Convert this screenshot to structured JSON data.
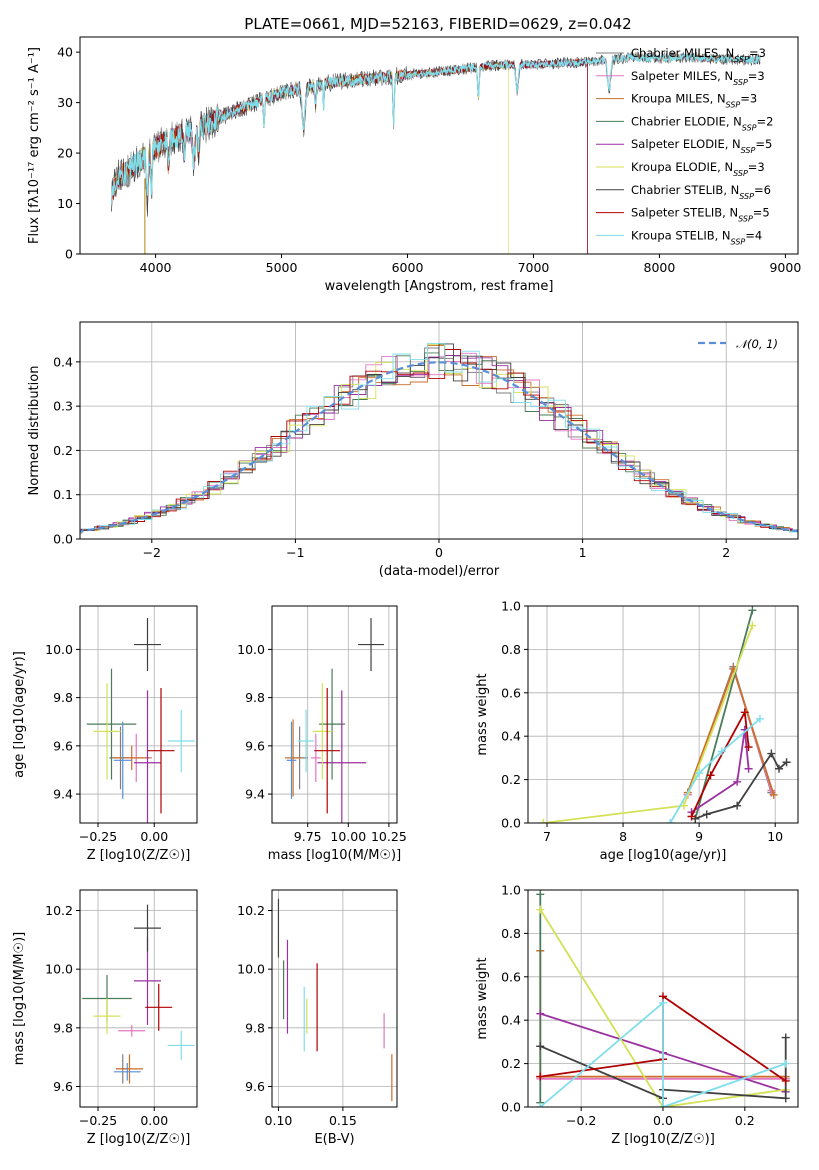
{
  "title": "PLATE=0661, MJD=52163, FIBERID=0629, z=0.042",
  "colors": {
    "chabrier_miles": "#7f7f7f",
    "salpeter_miles": "#e377c2",
    "kroupa_miles": "#b8860b",
    "chabrier_elodie": "#4a7c59",
    "salpeter_elodie": "#9b30a0",
    "kroupa_elodie": "#d4e157",
    "chabrier_stelib": "#404040",
    "salpeter_stelib": "#b00000",
    "kroupa_stelib": "#80deea",
    "miles_orange": "#cc6f2a",
    "blue_dash": "#5a8ed8"
  },
  "chart_data": [
    {
      "type": "line",
      "id": "spectrum",
      "title": "PLATE=0661, MJD=52163, FIBERID=0629, z=0.042",
      "xlabel": "wavelength [Angstrom, rest frame]",
      "ylabel": "Flux [fλ10⁻¹⁷ erg cm⁻² s⁻¹ A⁻¹]",
      "xlim": [
        3400,
        9100
      ],
      "ylim": [
        0,
        43
      ],
      "xticks": [
        4000,
        5000,
        6000,
        7000,
        8000,
        9000
      ],
      "yticks": [
        0,
        10,
        20,
        30,
        40
      ],
      "grid": false,
      "legend_position": "top-right",
      "continuum_x": [
        3650,
        3700,
        3800,
        3900,
        4000,
        4100,
        4200,
        4300,
        4400,
        4500,
        4600,
        4800,
        5000,
        5200,
        5400,
        5600,
        5800,
        6000,
        6200,
        6400,
        6600,
        6800,
        7000,
        7200,
        7400,
        7600,
        7800,
        8000,
        8200,
        8400,
        8600,
        8800
      ],
      "continuum_y": [
        12,
        15,
        17,
        19,
        21,
        22.5,
        23.5,
        24.5,
        25.5,
        27,
        28,
        30,
        32,
        33,
        34,
        34.5,
        35,
        35.5,
        36,
        36.5,
        37.2,
        37.5,
        37.5,
        37.8,
        38,
        38.5,
        39,
        38.8,
        39,
        38.7,
        38.5,
        38.5
      ],
      "legend": [
        "Chabrier MILES, N_SSP=3",
        "Salpeter MILES, N_SSP=3",
        "Kroupa MILES, N_SSP=3",
        "Chabrier ELODIE, N_SSP=2",
        "Salpeter ELODIE, N_SSP=5",
        "Kroupa ELODIE, N_SSP=3",
        "Chabrier STELIB, N_SSP=6",
        "Salpeter STELIB, N_SSP=5",
        "Kroupa STELIB, N_SSP=4"
      ]
    },
    {
      "type": "bar",
      "id": "residuals",
      "xlabel": "(data-model)/error",
      "ylabel": "Normed distribution",
      "xlim": [
        -2.5,
        2.5
      ],
      "ylim": [
        0,
        0.49
      ],
      "xticks": [
        -2,
        -1,
        0,
        1,
        2
      ],
      "yticks": [
        0.0,
        0.1,
        0.2,
        0.3,
        0.4
      ],
      "grid": true,
      "legend_position": "top-right",
      "legend": [
        "𝒩(0, 1)"
      ],
      "gaussian": {
        "mean": 0,
        "sigma": 1
      }
    },
    {
      "type": "scatter",
      "id": "age-vs-z",
      "xlabel": "Z [log10(Z/Z☉)]",
      "ylabel": "age  [log10(age/yr)]",
      "xlim": [
        -0.33,
        0.19
      ],
      "ylim": [
        9.28,
        10.18
      ],
      "xticks": [
        -0.25,
        0.0
      ],
      "yticks": [
        9.4,
        9.6,
        9.8,
        10.0
      ],
      "grid": true,
      "points": [
        {
          "x": -0.15,
          "y": 9.55,
          "xe": 0.05,
          "ye": 0.13,
          "c": "#7f7f7f"
        },
        {
          "x": -0.08,
          "y": 9.55,
          "xe": 0.07,
          "ye": 0.1,
          "c": "#e377c2"
        },
        {
          "x": -0.1,
          "y": 9.55,
          "xe": 0.08,
          "ye": 0.05,
          "c": "#cc6f2a"
        },
        {
          "x": -0.19,
          "y": 9.69,
          "xe": 0.11,
          "ye": 0.23,
          "c": "#4a7c59"
        },
        {
          "x": -0.03,
          "y": 9.53,
          "xe": 0.06,
          "ye": 0.3,
          "c": "#9b30a0"
        },
        {
          "x": -0.21,
          "y": 9.66,
          "xe": 0.06,
          "ye": 0.2,
          "c": "#d4e157"
        },
        {
          "x": -0.03,
          "y": 10.02,
          "xe": 0.06,
          "ye": 0.11,
          "c": "#404040"
        },
        {
          "x": 0.03,
          "y": 9.58,
          "xe": 0.06,
          "ye": 0.26,
          "c": "#b00000"
        },
        {
          "x": 0.12,
          "y": 9.62,
          "xe": 0.06,
          "ye": 0.13,
          "c": "#80deea"
        },
        {
          "x": -0.14,
          "y": 9.54,
          "xe": 0.04,
          "ye": 0.16,
          "c": "#5a8ed8"
        }
      ]
    },
    {
      "type": "scatter",
      "id": "age-vs-mass",
      "xlabel": "mass [log10(M/M☉)]",
      "ylabel": "",
      "xlim": [
        9.53,
        10.3
      ],
      "ylim": [
        9.28,
        10.18
      ],
      "xticks": [
        9.75,
        10.0,
        10.25
      ],
      "yticks": [
        9.4,
        9.6,
        9.8,
        10.0
      ],
      "grid": true,
      "points": [
        {
          "x": 9.7,
          "y": 9.55,
          "xe": 0.05,
          "ye": 0.13,
          "c": "#7f7f7f"
        },
        {
          "x": 9.8,
          "y": 9.55,
          "xe": 0.03,
          "ye": 0.1,
          "c": "#e377c2"
        },
        {
          "x": 9.66,
          "y": 9.55,
          "xe": 0.05,
          "ye": 0.16,
          "c": "#cc6f2a"
        },
        {
          "x": 9.9,
          "y": 9.69,
          "xe": 0.08,
          "ye": 0.23,
          "c": "#4a7c59"
        },
        {
          "x": 9.96,
          "y": 9.53,
          "xe": 0.15,
          "ye": 0.3,
          "c": "#9b30a0"
        },
        {
          "x": 9.84,
          "y": 9.66,
          "xe": 0.06,
          "ye": 0.2,
          "c": "#d4e157"
        },
        {
          "x": 10.14,
          "y": 10.02,
          "xe": 0.08,
          "ye": 0.11,
          "c": "#404040"
        },
        {
          "x": 9.87,
          "y": 9.58,
          "xe": 0.08,
          "ye": 0.26,
          "c": "#b00000"
        },
        {
          "x": 9.74,
          "y": 9.62,
          "xe": 0.05,
          "ye": 0.13,
          "c": "#80deea"
        },
        {
          "x": 9.65,
          "y": 9.54,
          "xe": 0.03,
          "ye": 0.16,
          "c": "#5a8ed8"
        }
      ]
    },
    {
      "type": "line",
      "id": "weight-vs-age",
      "xlabel": "age  [log10(age/yr)]",
      "ylabel": "mass weight",
      "xlim": [
        6.75,
        10.3
      ],
      "ylim": [
        0,
        1.0
      ],
      "xticks": [
        7,
        8,
        9,
        10
      ],
      "yticks": [
        0.0,
        0.2,
        0.4,
        0.6,
        0.8,
        1.0
      ],
      "grid": true,
      "series": [
        {
          "c": "#7f7f7f",
          "x": [
            8.85,
            9.45,
            9.95
          ],
          "y": [
            0.13,
            0.72,
            0.14
          ]
        },
        {
          "c": "#e377c2",
          "x": [
            8.85,
            9.45,
            9.95
          ],
          "y": [
            0.13,
            0.71,
            0.15
          ]
        },
        {
          "c": "#cc6f2a",
          "x": [
            8.85,
            9.45,
            9.98
          ],
          "y": [
            0.14,
            0.71,
            0.13
          ]
        },
        {
          "c": "#4a7c59",
          "x": [
            8.95,
            9.7
          ],
          "y": [
            0.02,
            0.98
          ]
        },
        {
          "c": "#9b30a0",
          "x": [
            8.9,
            9.5,
            9.6,
            9.65
          ],
          "y": [
            0.05,
            0.19,
            0.43,
            0.25
          ]
        },
        {
          "c": "#d4e157",
          "x": [
            6.95,
            8.8,
            9.7
          ],
          "y": [
            0.0,
            0.08,
            0.91
          ]
        },
        {
          "c": "#404040",
          "x": [
            8.95,
            9.1,
            9.5,
            9.95,
            10.05,
            10.15
          ],
          "y": [
            0.02,
            0.04,
            0.08,
            0.32,
            0.25,
            0.28
          ]
        },
        {
          "c": "#b00000",
          "x": [
            8.9,
            9.15,
            9.6,
            9.65
          ],
          "y": [
            0.03,
            0.22,
            0.51,
            0.35
          ]
        },
        {
          "c": "#80deea",
          "x": [
            8.62,
            9.0,
            9.3,
            9.8
          ],
          "y": [
            0.0,
            0.23,
            0.33,
            0.48
          ]
        }
      ]
    },
    {
      "type": "scatter",
      "id": "mass-vs-z",
      "xlabel": "Z [log10(Z/Z☉)]",
      "ylabel": "mass [log10(M/M☉)]",
      "xlim": [
        -0.33,
        0.19
      ],
      "ylim": [
        9.53,
        10.27
      ],
      "xticks": [
        -0.25,
        0.0
      ],
      "yticks": [
        9.6,
        9.8,
        10.0,
        10.2
      ],
      "grid": true,
      "points": [
        {
          "x": -0.14,
          "y": 9.66,
          "xe": 0.03,
          "ye": 0.05,
          "c": "#7f7f7f"
        },
        {
          "x": -0.1,
          "y": 9.79,
          "xe": 0.06,
          "ye": 0.02,
          "c": "#e377c2"
        },
        {
          "x": -0.11,
          "y": 9.66,
          "xe": 0.06,
          "ye": 0.05,
          "c": "#cc6f2a"
        },
        {
          "x": -0.21,
          "y": 9.9,
          "xe": 0.11,
          "ye": 0.08,
          "c": "#4a7c59"
        },
        {
          "x": -0.03,
          "y": 9.96,
          "xe": 0.06,
          "ye": 0.15,
          "c": "#9b30a0"
        },
        {
          "x": -0.21,
          "y": 9.84,
          "xe": 0.06,
          "ye": 0.06,
          "c": "#d4e157"
        },
        {
          "x": -0.03,
          "y": 10.14,
          "xe": 0.06,
          "ye": 0.08,
          "c": "#404040"
        },
        {
          "x": 0.02,
          "y": 9.87,
          "xe": 0.06,
          "ye": 0.08,
          "c": "#b00000"
        },
        {
          "x": 0.12,
          "y": 9.74,
          "xe": 0.06,
          "ye": 0.05,
          "c": "#80deea"
        },
        {
          "x": -0.12,
          "y": 9.65,
          "xe": 0.06,
          "ye": 0.03,
          "c": "#5a8ed8"
        }
      ]
    },
    {
      "type": "scatter",
      "id": "mass-vs-ebv",
      "xlabel": "E(B-V)",
      "ylabel": "",
      "xlim": [
        0.095,
        0.192
      ],
      "ylim": [
        9.53,
        10.27
      ],
      "xticks": [
        0.1,
        0.15
      ],
      "yticks": [
        9.6,
        9.8,
        10.0,
        10.2
      ],
      "grid": true,
      "points": [
        {
          "x": 0.1,
          "y": 10.14,
          "ye": 0.1,
          "c": "#404040"
        },
        {
          "x": 0.104,
          "y": 9.93,
          "ye": 0.1,
          "c": "#4a7c59"
        },
        {
          "x": 0.107,
          "y": 9.94,
          "ye": 0.16,
          "c": "#9b30a0"
        },
        {
          "x": 0.12,
          "y": 9.83,
          "ye": 0.11,
          "c": "#80deea"
        },
        {
          "x": 0.122,
          "y": 9.84,
          "ye": 0.06,
          "c": "#d4e157"
        },
        {
          "x": 0.13,
          "y": 9.87,
          "ye": 0.15,
          "c": "#b00000"
        },
        {
          "x": 0.182,
          "y": 9.79,
          "ye": 0.06,
          "c": "#e377c2"
        },
        {
          "x": 0.188,
          "y": 9.63,
          "ye": 0.08,
          "c": "#cc6f2a"
        }
      ]
    },
    {
      "type": "line",
      "id": "weight-vs-z",
      "xlabel": "Z [log10(Z/Z☉)]",
      "ylabel": "mass weight",
      "xlim": [
        -0.33,
        0.33
      ],
      "ylim": [
        0,
        1.0
      ],
      "xticks": [
        -0.2,
        0.0,
        0.2
      ],
      "yticks": [
        0.0,
        0.2,
        0.4,
        0.6,
        0.8,
        1.0
      ],
      "grid": true,
      "series": [
        {
          "c": "#cc6f2a",
          "x": [
            -0.3,
            -0.3,
            0.3,
            0.3
          ],
          "y": [
            0.72,
            0.14,
            0.14,
            0.13
          ]
        },
        {
          "c": "#e377c2",
          "x": [
            -0.3,
            0.3
          ],
          "y": [
            0.13,
            0.13
          ]
        },
        {
          "c": "#4a7c59",
          "x": [
            -0.3,
            -0.3
          ],
          "y": [
            0.02,
            0.98
          ]
        },
        {
          "c": "#9b30a0",
          "x": [
            -0.3,
            0.0,
            0.3
          ],
          "y": [
            0.43,
            0.25,
            0.07
          ]
        },
        {
          "c": "#d4e157",
          "x": [
            -0.3,
            0.0,
            0.3
          ],
          "y": [
            0.91,
            0.0,
            0.08
          ]
        },
        {
          "c": "#404040",
          "x": [
            -0.3,
            0.0,
            0.0,
            0.3,
            0.3
          ],
          "y": [
            0.28,
            0.04,
            0.08,
            0.04,
            0.32
          ]
        },
        {
          "c": "#b00000",
          "x": [
            -0.3,
            0.0,
            0.0,
            0.3
          ],
          "y": [
            0.14,
            0.22,
            0.51,
            0.12
          ]
        },
        {
          "c": "#80deea",
          "x": [
            -0.3,
            0.0,
            0.0,
            0.3
          ],
          "y": [
            0.0,
            0.48,
            0.0,
            0.2
          ]
        }
      ]
    }
  ]
}
